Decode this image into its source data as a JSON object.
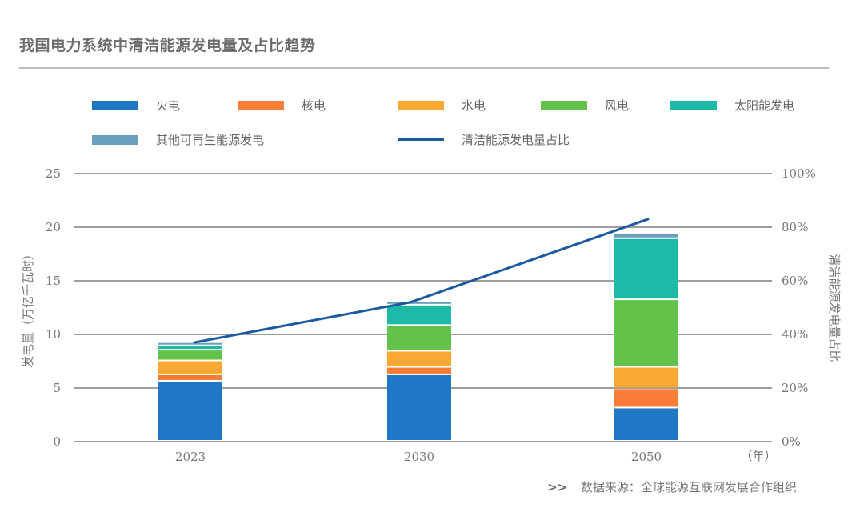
{
  "title": "我国电力系统中清洁能源发电量及占比趋势",
  "source": {
    "prefix": ">>",
    "text": "数据来源：全球能源互联网发展合作组织"
  },
  "colors": {
    "coal": "#1f77c6",
    "nuclear": "#f97c37",
    "hydro": "#fba832",
    "wind": "#63c24a",
    "solar": "#1dbba7",
    "other": "#6aa0bd",
    "share_line": "#1b5aa0",
    "grid": "#9e9e9e"
  },
  "chart_data": {
    "type": "bar",
    "stacked": true,
    "title": "我国电力系统中清洁能源发电量及占比趋势",
    "categories": [
      "2023",
      "2030",
      "2050"
    ],
    "xlabel": "（年）",
    "ylabel": "发电量（万亿千瓦时）",
    "ylim": [
      0,
      25
    ],
    "yticks": [
      0,
      5,
      10,
      15,
      20,
      25
    ],
    "y2label": "清洁能源发电量占比",
    "y2lim": [
      0,
      100
    ],
    "y2ticks": [
      "0%",
      "20%",
      "40%",
      "60%",
      "80%",
      "100%"
    ],
    "grid": true,
    "legend_position": "top",
    "series": [
      {
        "name": "火电",
        "key": "coal",
        "type": "bar",
        "values": [
          5.6,
          6.2,
          3.1
        ]
      },
      {
        "name": "核电",
        "key": "nuclear",
        "type": "bar",
        "values": [
          0.6,
          0.7,
          1.8
        ]
      },
      {
        "name": "水电",
        "key": "hydro",
        "type": "bar",
        "values": [
          1.3,
          1.5,
          2.0
        ]
      },
      {
        "name": "风电",
        "key": "wind",
        "type": "bar",
        "values": [
          1.0,
          2.4,
          6.3
        ]
      },
      {
        "name": "太阳能发电",
        "key": "solar",
        "type": "bar",
        "values": [
          0.4,
          1.9,
          5.7
        ]
      },
      {
        "name": "其他可再生能源发电",
        "key": "other",
        "type": "bar",
        "values": [
          0.3,
          0.3,
          0.5
        ]
      },
      {
        "name": "清洁能源发电量占比",
        "key": "share_line",
        "type": "line",
        "axis": "y2",
        "values": [
          37,
          52,
          83
        ]
      }
    ]
  }
}
